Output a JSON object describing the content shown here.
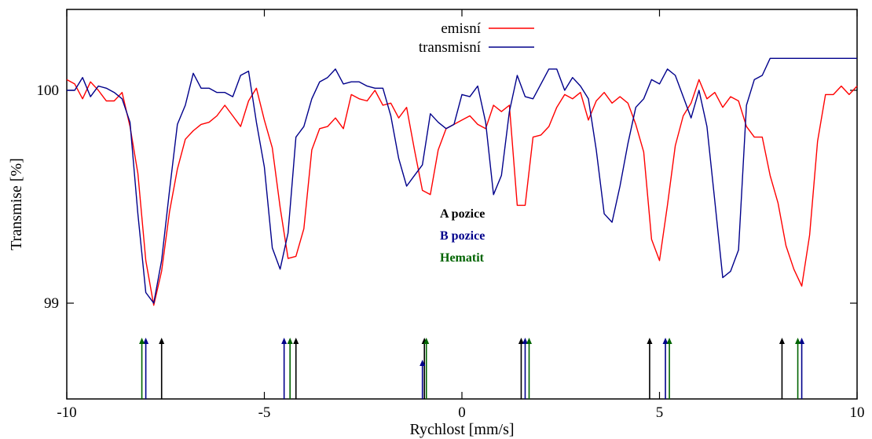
{
  "chart_data": {
    "type": "line",
    "title": "",
    "xlabel": "Rychlost [mm/s]",
    "ylabel": "Transmise [%]",
    "xlim": [
      -10,
      10
    ],
    "ylim": [
      98.55,
      100.38
    ],
    "xticks": [
      -10,
      -5,
      0,
      5,
      10
    ],
    "xtick_labels": [
      "-10",
      "-5",
      "0",
      "5",
      "10"
    ],
    "yticks": [
      99,
      100
    ],
    "ytick_labels": [
      "99",
      "100"
    ],
    "legend": {
      "placement": "top-center"
    },
    "series": [
      {
        "name": "emisní",
        "color": "#ff0000",
        "x": [
          -10.0,
          -9.8,
          -9.6,
          -9.4,
          -9.2,
          -9.0,
          -8.8,
          -8.6,
          -8.4,
          -8.2,
          -8.0,
          -7.8,
          -7.6,
          -7.4,
          -7.2,
          -7.0,
          -6.8,
          -6.6,
          -6.4,
          -6.2,
          -6.0,
          -5.8,
          -5.6,
          -5.4,
          -5.2,
          -5.0,
          -4.8,
          -4.6,
          -4.4,
          -4.2,
          -4.0,
          -3.8,
          -3.6,
          -3.4,
          -3.2,
          -3.0,
          -2.8,
          -2.6,
          -2.4,
          -2.2,
          -2.0,
          -1.8,
          -1.6,
          -1.4,
          -1.2,
          -1.0,
          -0.8,
          -0.6,
          -0.4,
          -0.2,
          0.0,
          0.2,
          0.4,
          0.6,
          0.8,
          1.0,
          1.2,
          1.4,
          1.6,
          1.8,
          2.0,
          2.2,
          2.4,
          2.6,
          2.8,
          3.0,
          3.2,
          3.4,
          3.6,
          3.8,
          4.0,
          4.2,
          4.4,
          4.6,
          4.8,
          5.0,
          5.2,
          5.4,
          5.6,
          5.8,
          6.0,
          6.2,
          6.4,
          6.6,
          6.8,
          7.0,
          7.2,
          7.4,
          7.6,
          7.8,
          8.0,
          8.2,
          8.4,
          8.6,
          8.8,
          9.0,
          9.2,
          9.4,
          9.6,
          9.8,
          10.0
        ],
        "y": [
          100.05,
          100.03,
          99.96,
          100.04,
          100.0,
          99.95,
          99.95,
          99.99,
          99.83,
          99.61,
          99.2,
          98.99,
          99.15,
          99.43,
          99.63,
          99.77,
          99.81,
          99.84,
          99.85,
          99.88,
          99.93,
          99.88,
          99.83,
          99.95,
          100.01,
          99.86,
          99.73,
          99.45,
          99.21,
          99.22,
          99.35,
          99.72,
          99.82,
          99.83,
          99.87,
          99.82,
          99.98,
          99.96,
          99.95,
          100.0,
          99.93,
          99.94,
          99.87,
          99.92,
          99.72,
          99.53,
          99.51,
          99.72,
          99.82,
          99.84,
          99.86,
          99.88,
          99.84,
          99.82,
          99.93,
          99.9,
          99.93,
          99.46,
          99.46,
          99.78,
          99.79,
          99.83,
          99.92,
          99.98,
          99.96,
          99.99,
          99.86,
          99.95,
          99.99,
          99.94,
          99.97,
          99.94,
          99.84,
          99.71,
          99.3,
          99.2,
          99.46,
          99.74,
          99.88,
          99.94,
          100.05,
          99.96,
          99.99,
          99.92,
          99.97,
          99.95,
          99.83,
          99.78,
          99.78,
          99.6,
          99.47,
          99.27,
          99.16,
          99.08,
          99.32,
          99.76,
          99.98,
          99.98,
          100.02,
          99.98,
          100.02
        ]
      },
      {
        "name": "transmisní",
        "color": "#00008b",
        "x": [
          -10.0,
          -9.8,
          -9.6,
          -9.4,
          -9.2,
          -9.0,
          -8.8,
          -8.6,
          -8.4,
          -8.2,
          -8.0,
          -7.8,
          -7.6,
          -7.4,
          -7.2,
          -7.0,
          -6.8,
          -6.6,
          -6.4,
          -6.2,
          -6.0,
          -5.8,
          -5.6,
          -5.4,
          -5.2,
          -5.0,
          -4.8,
          -4.6,
          -4.4,
          -4.2,
          -4.0,
          -3.8,
          -3.6,
          -3.4,
          -3.2,
          -3.0,
          -2.8,
          -2.6,
          -2.4,
          -2.2,
          -2.0,
          -1.8,
          -1.6,
          -1.4,
          -1.2,
          -1.0,
          -0.8,
          -0.6,
          -0.4,
          -0.2,
          0.0,
          0.2,
          0.4,
          0.6,
          0.8,
          1.0,
          1.2,
          1.4,
          1.6,
          1.8,
          2.0,
          2.2,
          2.4,
          2.6,
          2.8,
          3.0,
          3.2,
          3.4,
          3.6,
          3.8,
          4.0,
          4.2,
          4.4,
          4.6,
          4.8,
          5.0,
          5.2,
          5.4,
          5.6,
          5.8,
          6.0,
          6.2,
          6.4,
          6.6,
          6.8,
          7.0,
          7.2,
          7.4,
          7.6,
          7.8,
          8.0,
          8.2,
          8.4,
          8.6,
          8.8,
          9.0,
          9.2,
          9.4,
          9.6,
          9.8,
          10.0
        ],
        "y": [
          100.0,
          100.0,
          100.06,
          99.97,
          100.02,
          100.01,
          99.99,
          99.96,
          99.85,
          99.42,
          99.05,
          99.0,
          99.2,
          99.53,
          99.84,
          99.93,
          100.08,
          100.01,
          100.01,
          99.99,
          99.99,
          99.97,
          100.07,
          100.09,
          99.85,
          99.64,
          99.26,
          99.16,
          99.33,
          99.78,
          99.83,
          99.96,
          100.04,
          100.06,
          100.1,
          100.03,
          100.04,
          100.04,
          100.02,
          100.01,
          100.01,
          99.88,
          99.68,
          99.55,
          99.6,
          99.65,
          99.89,
          99.85,
          99.82,
          99.84,
          99.98,
          99.97,
          100.02,
          99.85,
          99.51,
          99.6,
          99.9,
          100.07,
          99.97,
          99.96,
          100.03,
          100.1,
          100.1,
          100.0,
          100.06,
          100.02,
          99.96,
          99.72,
          99.42,
          99.38,
          99.55,
          99.75,
          99.92,
          99.96,
          100.05,
          100.03,
          100.1,
          100.07,
          99.97,
          99.87,
          100.0,
          99.83,
          99.48,
          99.12,
          99.15,
          99.25,
          99.93,
          100.05,
          100.07,
          100.15,
          100.15,
          100.15,
          100.15,
          100.15,
          100.15,
          100.15,
          100.15,
          100.15,
          100.15,
          100.15,
          100.15
        ]
      }
    ],
    "annotations": [
      {
        "text": "A pozice",
        "color": "#000000"
      },
      {
        "text": "B pozice",
        "color": "#00008b"
      },
      {
        "text": "Hematit",
        "color": "#006400"
      }
    ],
    "markers": {
      "A pozice": {
        "color": "#000000",
        "x": [
          -7.6,
          -4.2,
          -0.95,
          1.5,
          4.75,
          8.1
        ]
      },
      "B pozice": {
        "color": "#00008b",
        "x": [
          -8.0,
          -4.5,
          -1.0,
          1.6,
          5.15,
          8.6
        ]
      },
      "Hematit": {
        "color": "#006400",
        "x": [
          -8.1,
          -4.35,
          -0.9,
          1.7,
          5.25,
          8.5
        ]
      }
    }
  }
}
